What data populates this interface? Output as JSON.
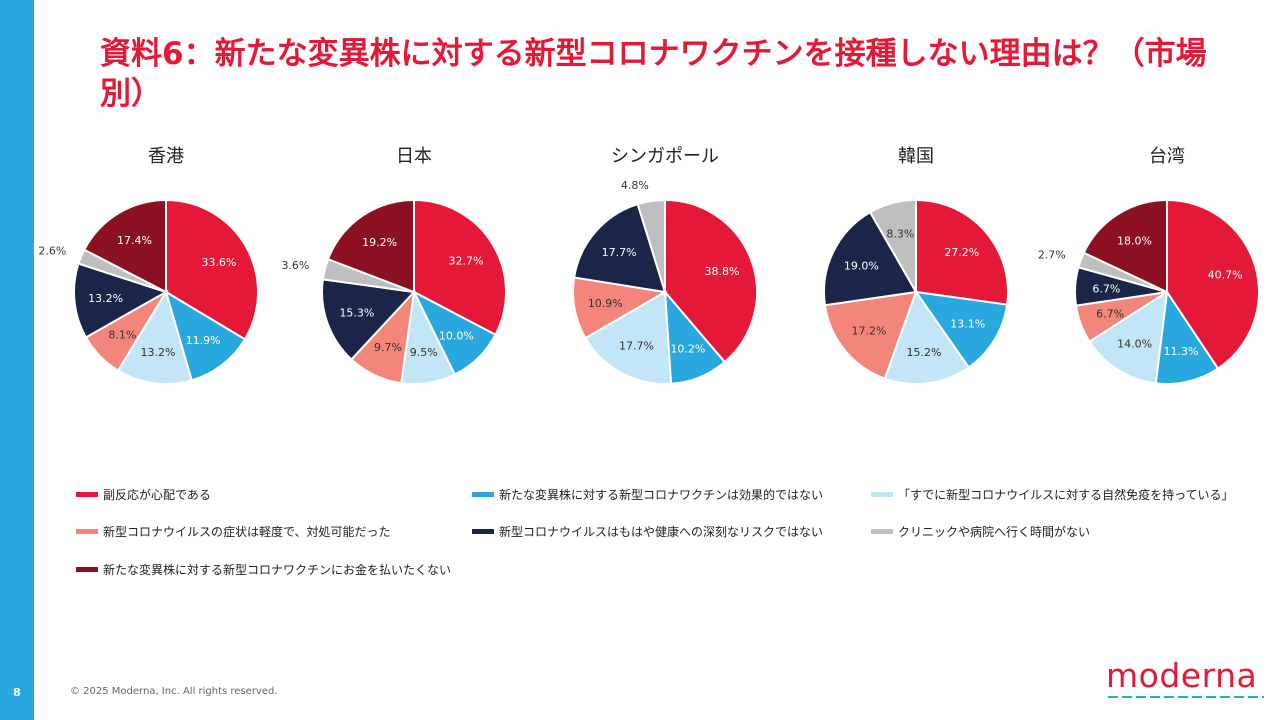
{
  "title": "資料6：新たな変異株に対する新型コロナワクチンを接種しない理由は？（市場別）",
  "page_number": "8",
  "footer": "© 2025 Moderna, Inc. All rights reserved.",
  "logo_text": "moderna",
  "colors": {
    "accent": "#e31937",
    "sidebar": "#29a8e0",
    "series": [
      "#e31937",
      "#29a8e0",
      "#c2e5f7",
      "#f4857a",
      "#1b2547",
      "#bfbfbf",
      "#8b1122"
    ]
  },
  "legend": [
    "副反応が心配である",
    "新たな変異株に対する新型コロナワクチンは効果的ではない",
    "「すでに新型コロナウイルスに対する自然免疫を持っている」",
    "新型コロナウイルスの症状は軽度で、対処可能だった",
    "新型コロナウイルスはもはや健康への深刻なリスクではない",
    "クリニックや病院へ行く時間がない",
    "新たな変異株に対する新型コロナワクチンにお金を払いたくない"
  ],
  "chart_data": [
    {
      "type": "pie",
      "title": "香港",
      "categories_ref": "legend",
      "values": [
        33.6,
        11.9,
        13.2,
        8.1,
        13.2,
        2.6,
        17.4
      ],
      "labels": [
        "33.6%",
        "11.9%",
        "13.2%",
        "8.1%",
        "13.2%",
        "2.6%",
        "17.4%"
      ]
    },
    {
      "type": "pie",
      "title": "日本",
      "categories_ref": "legend",
      "values": [
        32.7,
        10.0,
        9.5,
        9.7,
        15.3,
        3.6,
        19.2
      ],
      "labels": [
        "32.7%",
        "10.0%",
        "9.5%",
        "9.7%",
        "15.3%",
        "3.6%",
        "19.2%"
      ]
    },
    {
      "type": "pie",
      "title": "シンガポール",
      "categories_ref": "legend",
      "values": [
        38.8,
        10.2,
        17.7,
        10.9,
        17.7,
        4.8,
        0
      ],
      "labels": [
        "38.8%",
        "10.2%",
        "17.7%",
        "10.9%",
        "17.7%",
        "4.8%",
        ""
      ]
    },
    {
      "type": "pie",
      "title": "韓国",
      "categories_ref": "legend",
      "values": [
        27.2,
        13.1,
        15.2,
        17.2,
        19.0,
        8.3,
        0
      ],
      "labels": [
        "27.2%",
        "13.1%",
        "15.2%",
        "17.2%",
        "19.0%",
        "8.3%",
        ""
      ]
    },
    {
      "type": "pie",
      "title": "台湾",
      "categories_ref": "legend",
      "values": [
        40.7,
        11.3,
        14.0,
        6.7,
        6.7,
        2.7,
        18.0
      ],
      "labels": [
        "40.7%",
        "11.3%",
        "14.0%",
        "6.7%",
        "6.7%",
        "2.7%",
        "18.0%"
      ]
    }
  ]
}
